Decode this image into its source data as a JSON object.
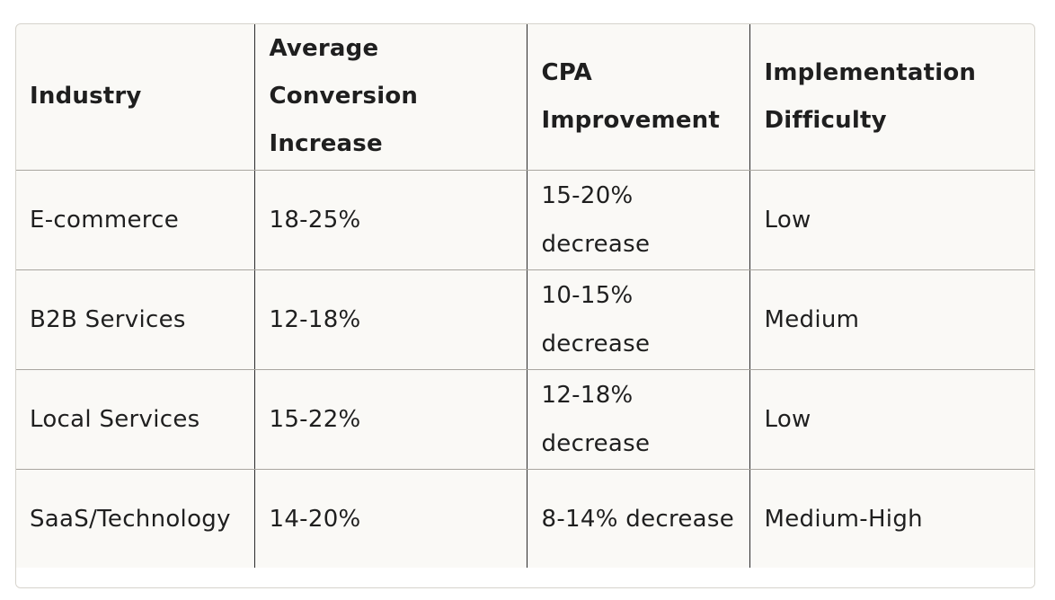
{
  "table": {
    "headers": [
      "Industry",
      "Average Conversion Increase",
      "CPA Improvement",
      "Implementation Difficulty"
    ],
    "rows": [
      [
        "E-commerce",
        "18-25%",
        "15-20% decrease",
        "Low"
      ],
      [
        "B2B Services",
        "12-18%",
        "10-15% decrease",
        "Medium"
      ],
      [
        "Local Services",
        "15-22%",
        "12-18% decrease",
        "Low"
      ],
      [
        "SaaS/Technology",
        "14-20%",
        "8-14% decrease",
        "Medium-High"
      ]
    ]
  }
}
